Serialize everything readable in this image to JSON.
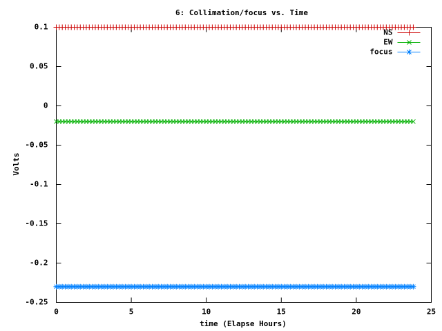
{
  "chart_data": {
    "type": "linespoints",
    "title": "6: Collimation/focus vs. Time",
    "xlabel": "time (Elapse Hours)",
    "ylabel": "Volts",
    "xlim": [
      0,
      25
    ],
    "xticks": [
      0,
      5,
      10,
      15,
      20,
      25
    ],
    "ylim": [
      -0.25,
      0.1
    ],
    "yticks": [
      -0.25,
      -0.2,
      -0.15,
      -0.1,
      -0.05,
      0,
      0.05,
      0.1
    ],
    "legend": "top-right",
    "x": [
      0,
      0.2,
      0.4,
      0.6,
      0.8,
      1,
      1.2,
      1.4,
      1.6,
      1.8,
      2,
      2.2,
      2.4,
      2.6,
      2.8,
      3,
      3.2,
      3.4,
      3.6,
      3.8,
      4,
      4.2,
      4.4,
      4.6,
      4.8,
      5,
      5.2,
      5.4,
      5.6,
      5.8,
      6,
      6.2,
      6.4,
      6.6,
      6.8,
      7,
      7.2,
      7.4,
      7.6,
      7.8,
      8,
      8.2,
      8.4,
      8.6,
      8.8,
      9,
      9.2,
      9.4,
      9.6,
      9.8,
      10,
      10.2,
      10.4,
      10.6,
      10.8,
      11,
      11.2,
      11.4,
      11.6,
      11.8,
      12,
      12.2,
      12.4,
      12.6,
      12.8,
      13,
      13.2,
      13.4,
      13.6,
      13.8,
      14,
      14.2,
      14.4,
      14.6,
      14.8,
      15,
      15.2,
      15.4,
      15.6,
      15.8,
      16,
      16.2,
      16.4,
      16.6,
      16.8,
      17,
      17.2,
      17.4,
      17.6,
      17.8,
      18,
      18.2,
      18.4,
      18.6,
      18.8,
      19,
      19.2,
      19.4,
      19.6,
      19.8,
      20,
      20.2,
      20.4,
      20.6,
      20.8,
      21,
      21.2,
      21.4,
      21.6,
      21.8,
      22,
      22.2,
      22.4,
      22.6,
      22.8,
      23,
      23.2,
      23.4,
      23.6,
      23.8
    ],
    "series": [
      {
        "name": "NS",
        "color": "#cc0000",
        "marker": "plus",
        "values": [
          0.1,
          0.1,
          0.1,
          0.1,
          0.1,
          0.1,
          0.1,
          0.1,
          0.1,
          0.1,
          0.1,
          0.1,
          0.1,
          0.1,
          0.1,
          0.1,
          0.1,
          0.1,
          0.1,
          0.1,
          0.1,
          0.1,
          0.1,
          0.1,
          0.1,
          0.1,
          0.1,
          0.1,
          0.1,
          0.1,
          0.1,
          0.1,
          0.1,
          0.1,
          0.1,
          0.1,
          0.1,
          0.1,
          0.1,
          0.1,
          0.1,
          0.1,
          0.1,
          0.1,
          0.1,
          0.1,
          0.1,
          0.1,
          0.1,
          0.1,
          0.1,
          0.1,
          0.1,
          0.1,
          0.1,
          0.1,
          0.1,
          0.1,
          0.1,
          0.1,
          0.1,
          0.1,
          0.1,
          0.1,
          0.1,
          0.1,
          0.1,
          0.1,
          0.1,
          0.1,
          0.1,
          0.1,
          0.1,
          0.1,
          0.1,
          0.1,
          0.1,
          0.1,
          0.1,
          0.1,
          0.1,
          0.1,
          0.1,
          0.1,
          0.1,
          0.1,
          0.1,
          0.1,
          0.1,
          0.1,
          0.1,
          0.1,
          0.1,
          0.1,
          0.1,
          0.1,
          0.1,
          0.1,
          0.1,
          0.1,
          0.1,
          0.1,
          0.1,
          0.1,
          0.1,
          0.1,
          0.1,
          0.1,
          0.1,
          0.1,
          0.1,
          0.1,
          0.1,
          0.1,
          0.1,
          0.1,
          0.1,
          0.1,
          0.1,
          0.1
        ]
      },
      {
        "name": "EW",
        "color": "#00b000",
        "marker": "cross",
        "values": [
          -0.02,
          -0.02,
          -0.02,
          -0.02,
          -0.02,
          -0.02,
          -0.02,
          -0.02,
          -0.02,
          -0.02,
          -0.02,
          -0.02,
          -0.02,
          -0.02,
          -0.02,
          -0.02,
          -0.02,
          -0.02,
          -0.02,
          -0.02,
          -0.02,
          -0.02,
          -0.02,
          -0.02,
          -0.02,
          -0.02,
          -0.02,
          -0.02,
          -0.02,
          -0.02,
          -0.02,
          -0.02,
          -0.02,
          -0.02,
          -0.02,
          -0.02,
          -0.02,
          -0.02,
          -0.02,
          -0.02,
          -0.02,
          -0.02,
          -0.02,
          -0.02,
          -0.02,
          -0.02,
          -0.02,
          -0.02,
          -0.02,
          -0.02,
          -0.02,
          -0.02,
          -0.02,
          -0.02,
          -0.02,
          -0.02,
          -0.02,
          -0.02,
          -0.02,
          -0.02,
          -0.02,
          -0.02,
          -0.02,
          -0.02,
          -0.02,
          -0.02,
          -0.02,
          -0.02,
          -0.02,
          -0.02,
          -0.02,
          -0.02,
          -0.02,
          -0.02,
          -0.02,
          -0.02,
          -0.02,
          -0.02,
          -0.02,
          -0.02,
          -0.02,
          -0.02,
          -0.02,
          -0.02,
          -0.02,
          -0.02,
          -0.02,
          -0.02,
          -0.02,
          -0.02,
          -0.02,
          -0.02,
          -0.02,
          -0.02,
          -0.02,
          -0.02,
          -0.02,
          -0.02,
          -0.02,
          -0.02,
          -0.02,
          -0.02,
          -0.02,
          -0.02,
          -0.02,
          -0.02,
          -0.02,
          -0.02,
          -0.02,
          -0.02,
          -0.02,
          -0.02,
          -0.02,
          -0.02,
          -0.02,
          -0.02,
          -0.02,
          -0.02,
          -0.02,
          -0.02
        ]
      },
      {
        "name": "focus",
        "color": "#0080ff",
        "marker": "star",
        "values": [
          -0.23,
          -0.23,
          -0.23,
          -0.23,
          -0.23,
          -0.23,
          -0.23,
          -0.23,
          -0.23,
          -0.23,
          -0.23,
          -0.23,
          -0.23,
          -0.23,
          -0.23,
          -0.23,
          -0.23,
          -0.23,
          -0.23,
          -0.23,
          -0.23,
          -0.23,
          -0.23,
          -0.23,
          -0.23,
          -0.23,
          -0.23,
          -0.23,
          -0.23,
          -0.23,
          -0.23,
          -0.23,
          -0.23,
          -0.23,
          -0.23,
          -0.23,
          -0.23,
          -0.23,
          -0.23,
          -0.23,
          -0.23,
          -0.23,
          -0.23,
          -0.23,
          -0.23,
          -0.23,
          -0.23,
          -0.23,
          -0.23,
          -0.23,
          -0.23,
          -0.23,
          -0.23,
          -0.23,
          -0.23,
          -0.23,
          -0.23,
          -0.23,
          -0.23,
          -0.23,
          -0.23,
          -0.23,
          -0.23,
          -0.23,
          -0.23,
          -0.23,
          -0.23,
          -0.23,
          -0.23,
          -0.23,
          -0.23,
          -0.23,
          -0.23,
          -0.23,
          -0.23,
          -0.23,
          -0.23,
          -0.23,
          -0.23,
          -0.23,
          -0.23,
          -0.23,
          -0.23,
          -0.23,
          -0.23,
          -0.23,
          -0.23,
          -0.23,
          -0.23,
          -0.23,
          -0.23,
          -0.23,
          -0.23,
          -0.23,
          -0.23,
          -0.23,
          -0.23,
          -0.23,
          -0.23,
          -0.23,
          -0.23,
          -0.23,
          -0.23,
          -0.23,
          -0.23,
          -0.23,
          -0.23,
          -0.23,
          -0.23,
          -0.23,
          -0.23,
          -0.23,
          -0.23,
          -0.23,
          -0.23,
          -0.23,
          -0.23,
          -0.23,
          -0.23,
          -0.23
        ]
      }
    ]
  }
}
